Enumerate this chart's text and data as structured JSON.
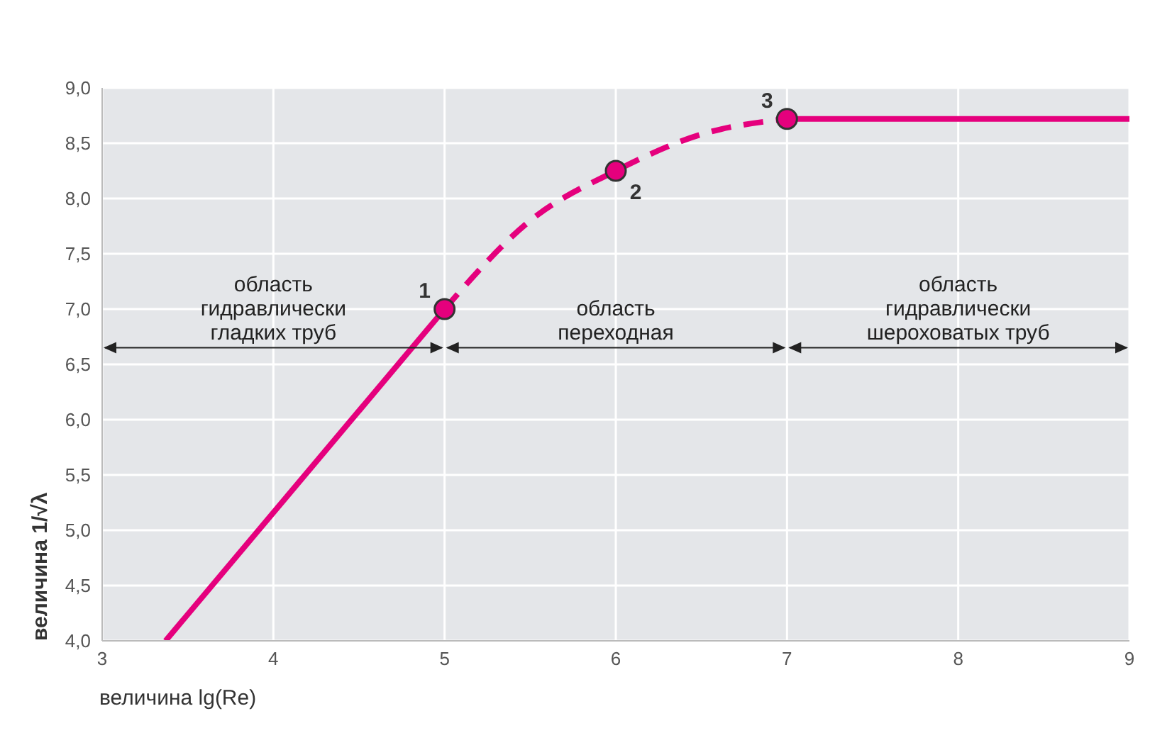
{
  "chart_data": {
    "type": "line",
    "xlabel": "величина lg(Re)",
    "ylabel": "величина 1/√λ",
    "xlim": [
      3,
      9
    ],
    "xticks": [
      3,
      4,
      5,
      6,
      7,
      8,
      9
    ],
    "ylim": [
      4,
      9
    ],
    "yticks": [
      {
        "value": 4,
        "label": "4,0"
      },
      {
        "value": 4.5,
        "label": "4,5"
      },
      {
        "value": 5,
        "label": "5,0"
      },
      {
        "value": 5.5,
        "label": "5,5"
      },
      {
        "value": 6,
        "label": "6,0"
      },
      {
        "value": 6.5,
        "label": "6,5"
      },
      {
        "value": 7,
        "label": "7,0"
      },
      {
        "value": 7.5,
        "label": "7,5"
      },
      {
        "value": 8,
        "label": "8,0"
      },
      {
        "value": 8.5,
        "label": "8,5"
      },
      {
        "value": 9,
        "label": "9,0"
      }
    ],
    "grid": true,
    "series": [
      {
        "color": "#e5007d",
        "line_style": "solid",
        "x": [
          3.37,
          5
        ],
        "values": [
          4.0,
          7.0
        ]
      },
      {
        "color": "#e5007d",
        "line_style": "dashed",
        "x": [
          5,
          5.5,
          6,
          6.5,
          7
        ],
        "values": [
          7.0,
          7.8,
          8.25,
          8.58,
          8.72
        ]
      },
      {
        "color": "#e5007d",
        "line_style": "solid",
        "x": [
          7,
          9
        ],
        "values": [
          8.72,
          8.72
        ]
      },
      {
        "type": "scatter",
        "color": "#e5007d",
        "marker": "circle",
        "x": [
          5,
          6,
          7
        ],
        "values": [
          7.0,
          8.25,
          8.72
        ]
      }
    ],
    "annotations": [
      {
        "text": "1",
        "x": 5,
        "y": 7.0
      },
      {
        "text": "2",
        "x": 6,
        "y": 8.25
      },
      {
        "text": "3",
        "x": 7,
        "y": 8.72
      },
      "область гидравлически гладких труб",
      "область переходная",
      "область гидравлически шероховатых труб"
    ]
  }
}
